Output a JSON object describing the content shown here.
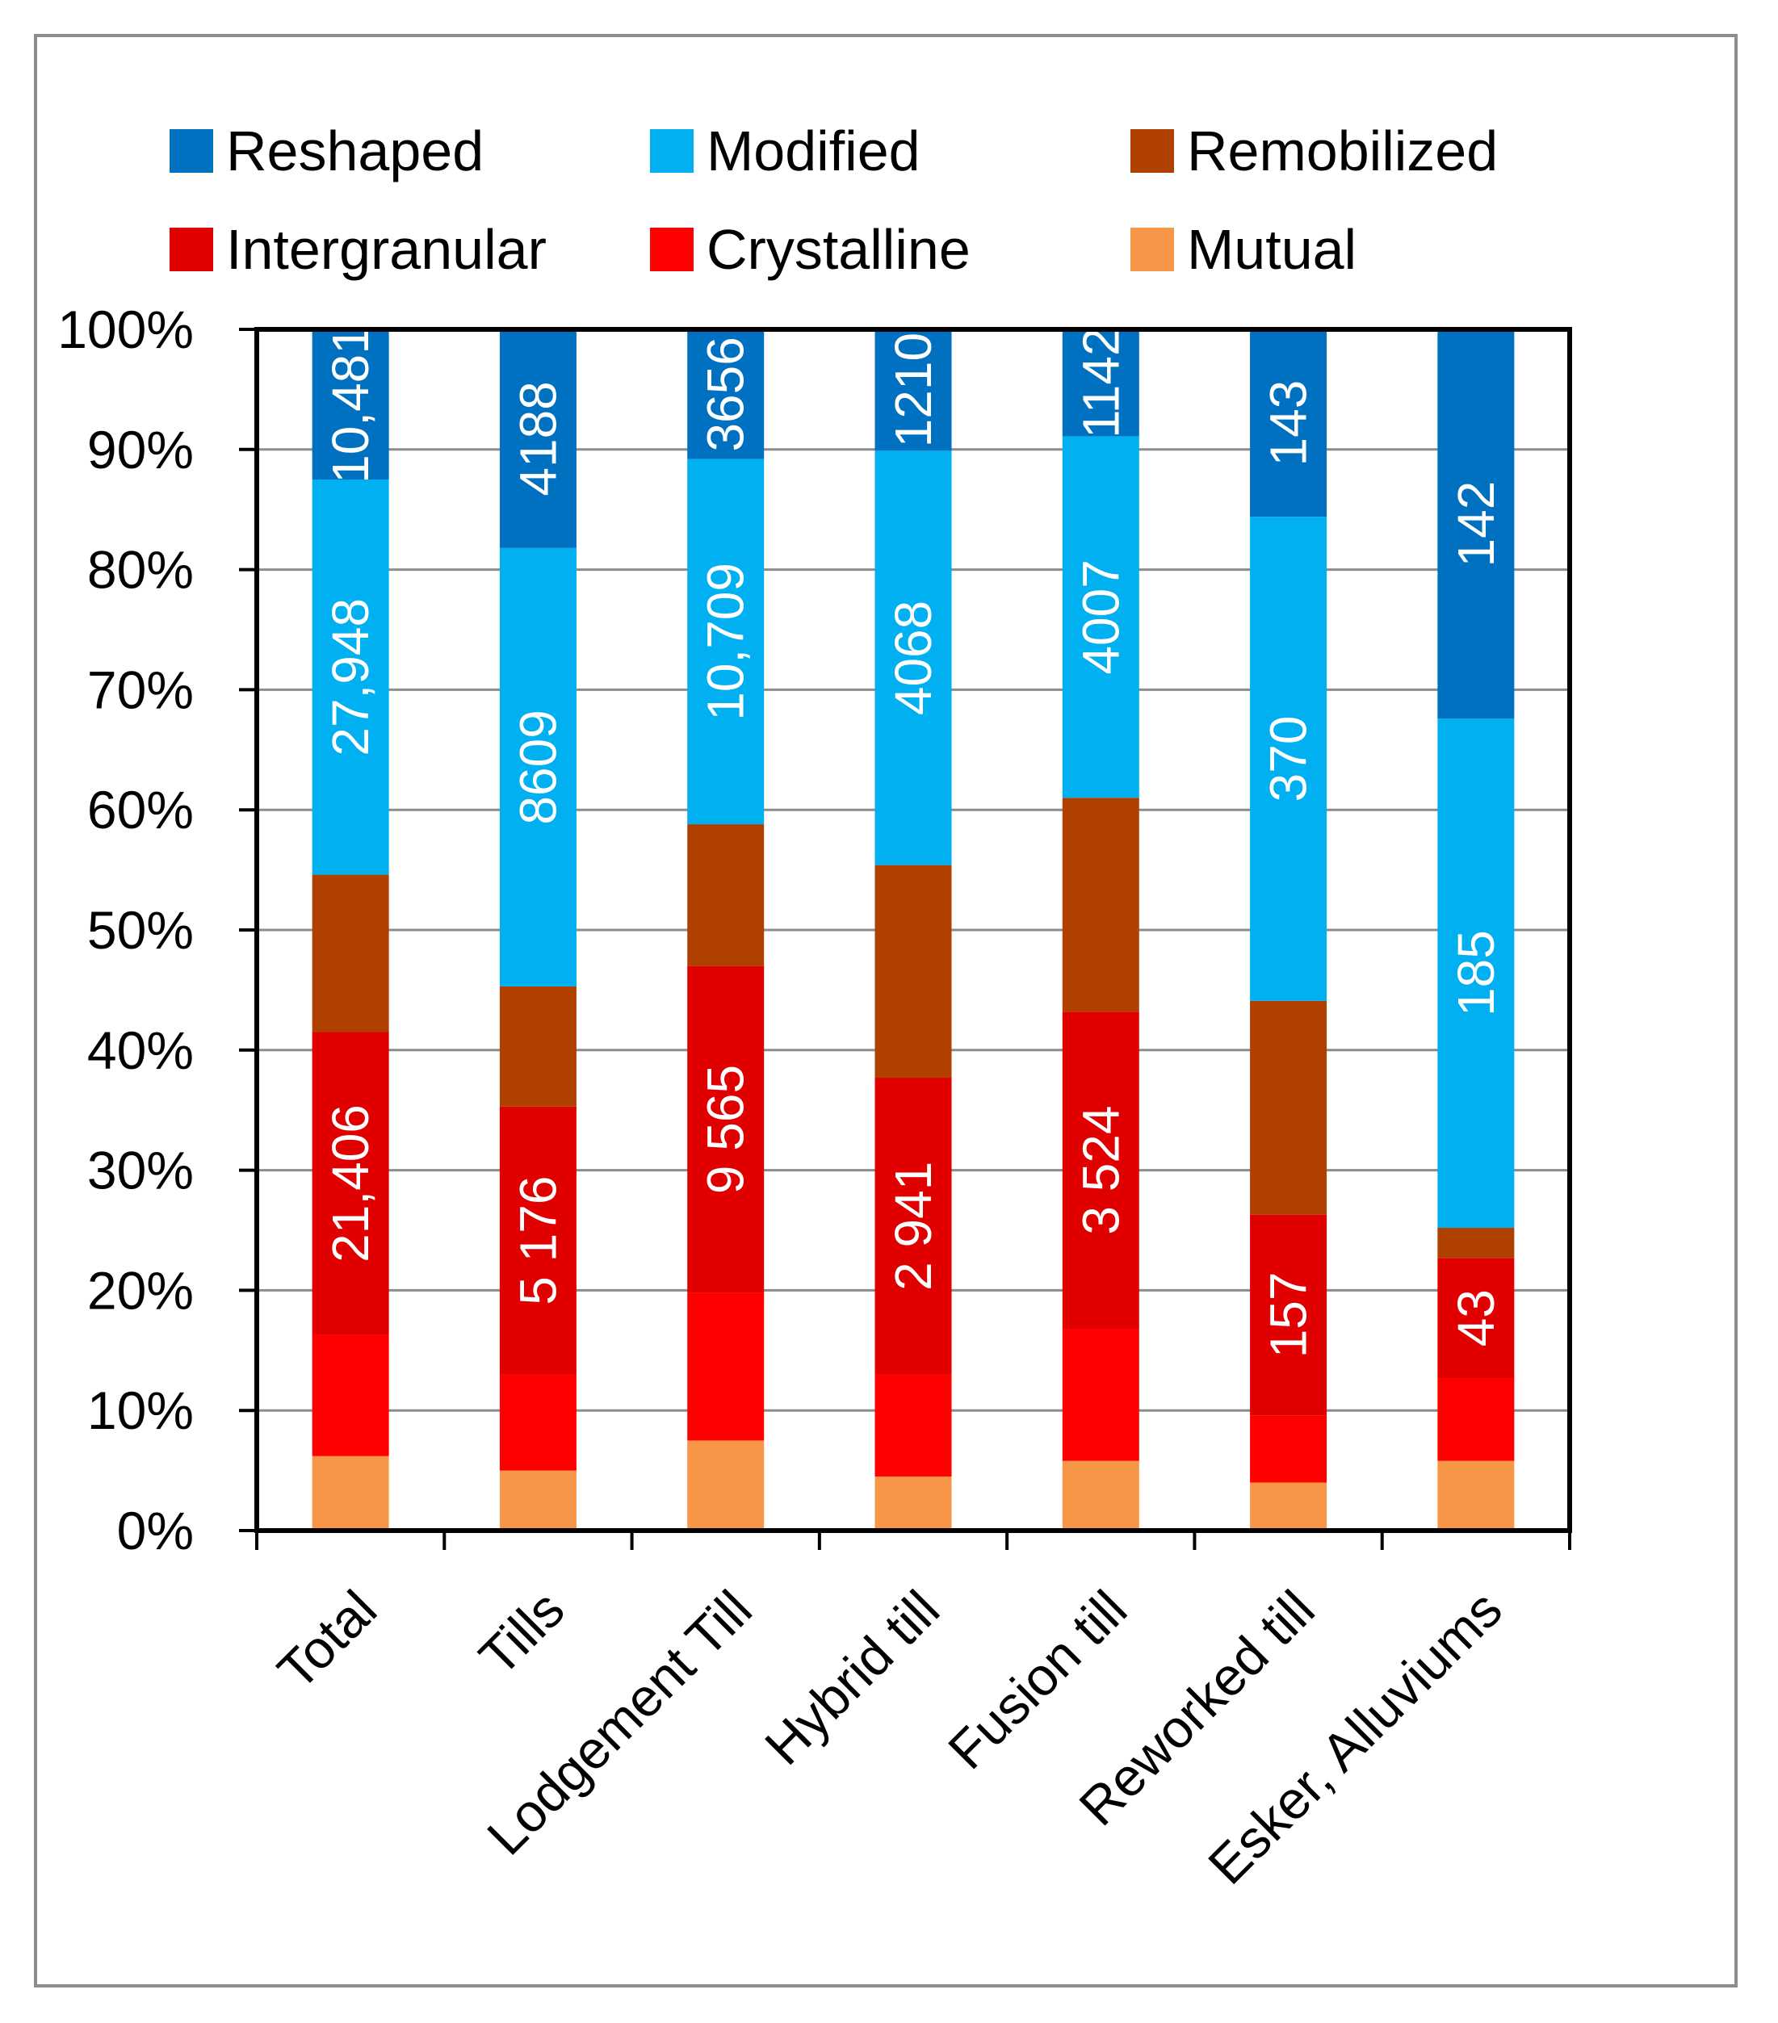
{
  "chart_data": {
    "type": "bar",
    "stacked": true,
    "normalized": true,
    "categories": [
      "Total",
      "Tills",
      "Lodgement Till",
      "Hybrid till",
      "Fusion till",
      "Reworked till",
      "Esker, Alluviums"
    ],
    "series": [
      {
        "name": "Mutual",
        "color": "#F79646",
        "values": [
          6.2,
          5.0,
          7.5,
          4.5,
          5.8,
          4.0,
          5.8
        ],
        "labels": [
          "",
          "",
          "",
          "",
          "",
          "",
          ""
        ]
      },
      {
        "name": "Crystalline",
        "color": "#FF0000",
        "values": [
          10.1,
          8.0,
          12.3,
          8.5,
          11.0,
          5.6,
          6.9
        ],
        "labels": [
          "",
          "",
          "",
          "",
          "",
          "",
          ""
        ]
      },
      {
        "name": "Intergranular",
        "color": "#E00000",
        "values": [
          25.2,
          22.3,
          27.2,
          24.7,
          26.4,
          16.7,
          10.0
        ],
        "labels": [
          "21,406",
          "5 176",
          "9 565",
          "2 941",
          "3 524",
          "157",
          "43"
        ]
      },
      {
        "name": "Remobilized",
        "color": "#B04000",
        "values": [
          13.1,
          10.0,
          11.8,
          17.7,
          17.8,
          17.8,
          2.5
        ],
        "labels": [
          "",
          "",
          "",
          "",
          "",
          "",
          ""
        ]
      },
      {
        "name": "Modified",
        "color": "#00B0F0",
        "values": [
          32.9,
          36.5,
          30.4,
          34.5,
          30.1,
          40.3,
          42.4
        ],
        "labels": [
          "27,948",
          "8609",
          "10,709",
          "4068",
          "4007",
          "370",
          "185"
        ]
      },
      {
        "name": "Reshaped",
        "color": "#0070C0",
        "values": [
          12.5,
          18.2,
          10.8,
          10.1,
          8.9,
          15.6,
          32.4
        ],
        "labels": [
          "10,481",
          "4188",
          "3656",
          "1210",
          "1142",
          "143",
          "142"
        ]
      }
    ],
    "legend_order": [
      "Reshaped",
      "Modified",
      "Remobilized",
      "Intergranular",
      "Crystalline",
      "Mutual"
    ],
    "yticks": [
      "0%",
      "10%",
      "20%",
      "30%",
      "40%",
      "50%",
      "60%",
      "70%",
      "80%",
      "90%",
      "100%"
    ],
    "ylim": [
      0,
      100
    ],
    "grid": true,
    "legend_position": "top",
    "title": "",
    "xlabel": "",
    "ylabel": ""
  }
}
